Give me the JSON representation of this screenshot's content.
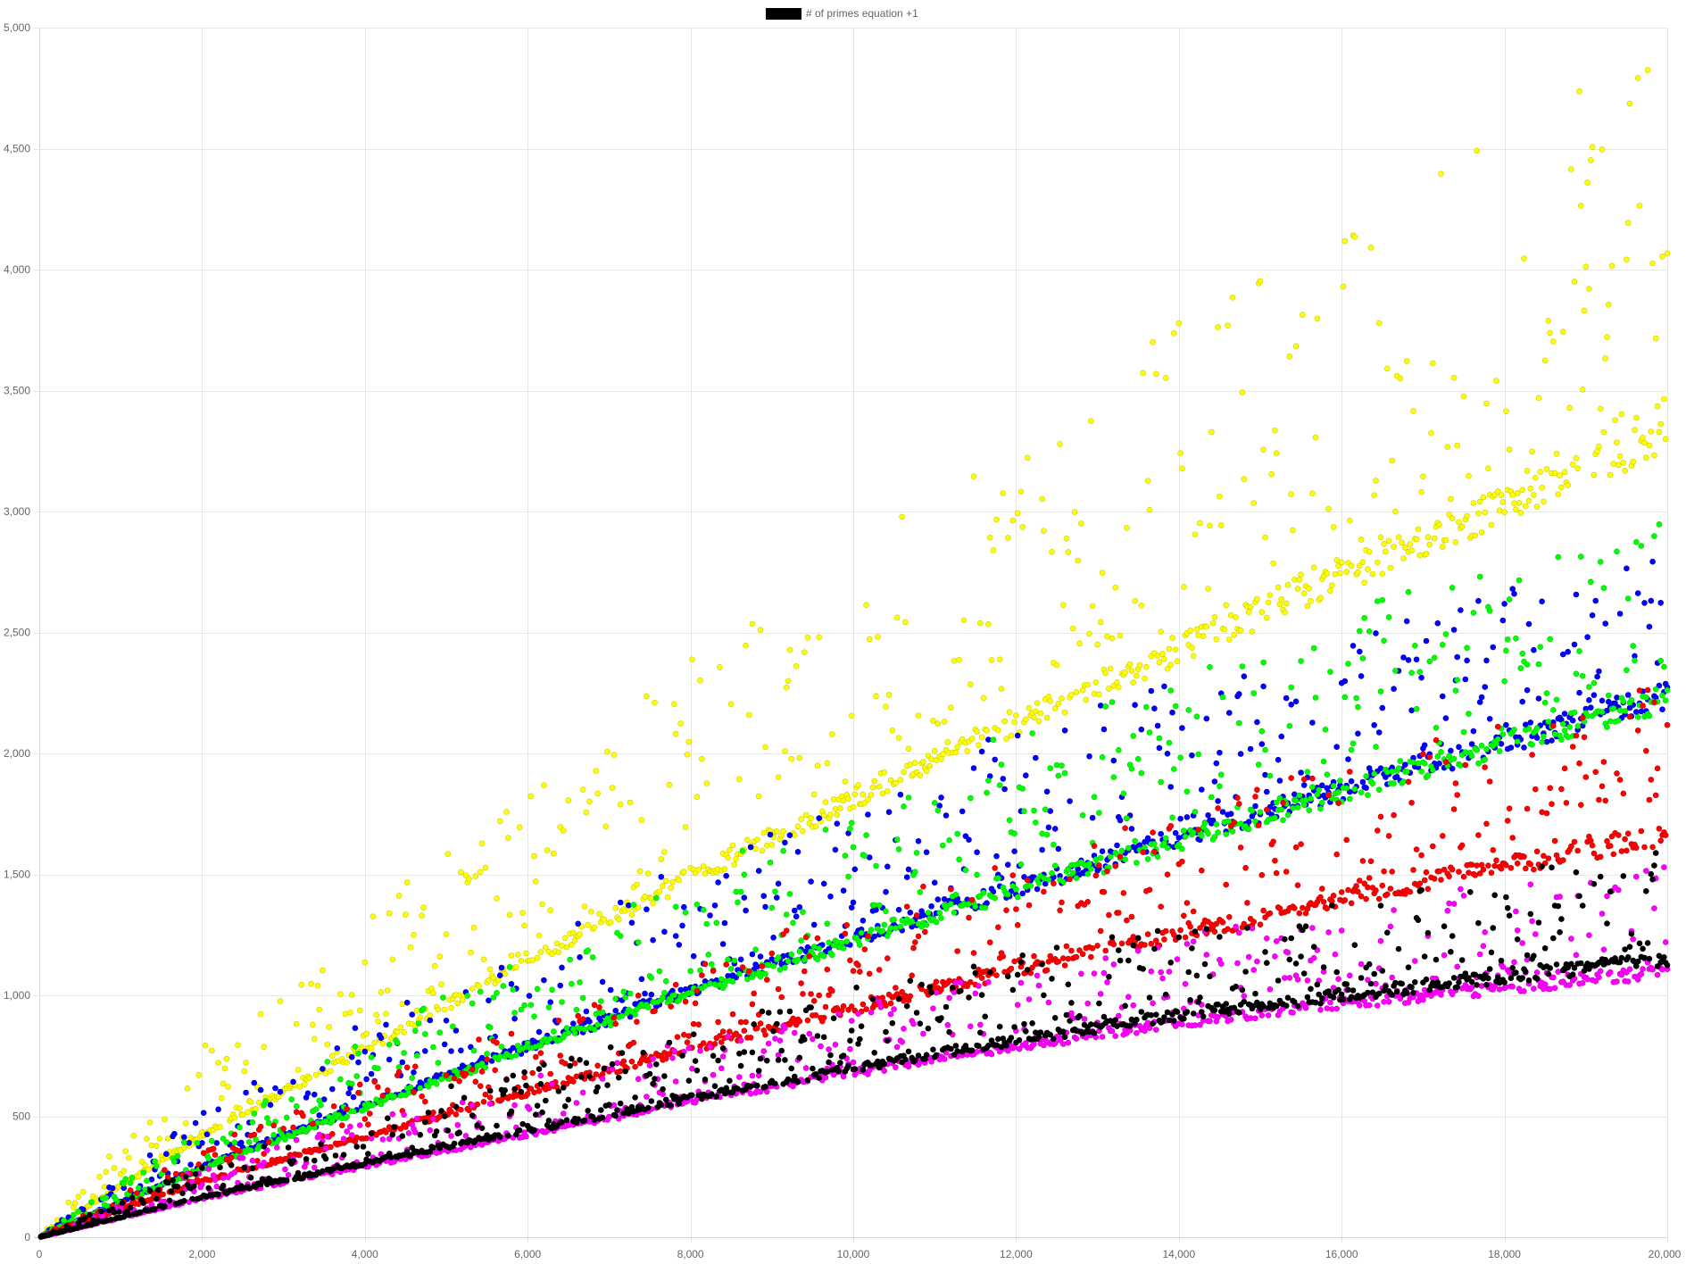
{
  "chart_data": {
    "type": "scatter",
    "title": "",
    "xlabel": "",
    "ylabel": "",
    "xlim": [
      0,
      20000
    ],
    "ylim": [
      0,
      5000
    ],
    "x_ticks": [
      0,
      2000,
      4000,
      6000,
      8000,
      10000,
      12000,
      14000,
      16000,
      18000,
      20000
    ],
    "x_tick_labels": [
      "0",
      "2,000",
      "4,000",
      "6,000",
      "8,000",
      "10,000",
      "12,000",
      "14,000",
      "16,000",
      "18,000",
      "20,000"
    ],
    "y_ticks": [
      0,
      500,
      1000,
      1500,
      2000,
      2500,
      3000,
      3500,
      4000,
      4500,
      5000
    ],
    "y_tick_labels": [
      "0",
      "500",
      "1,000",
      "1,500",
      "2,000",
      "2,500",
      "3,000",
      "3,500",
      "4,000",
      "4,500",
      "5,000"
    ],
    "grid": true,
    "legend": {
      "placement": "top-center",
      "entries": [
        {
          "label": "# of primes equation +1",
          "color": "#000000"
        }
      ]
    },
    "series": [
      {
        "color": "#ffff00",
        "stroke": "#cccc00",
        "trend": {
          "x": [
            0,
            2000,
            5000,
            8000,
            11000,
            14000,
            17000,
            20000
          ],
          "y": [
            0,
            420,
            960,
            1490,
            1980,
            2430,
            2880,
            3320
          ]
        },
        "upper": {
          "x": [
            0,
            2000,
            5000,
            8000,
            11000,
            14000,
            17000,
            20000
          ],
          "y": [
            0,
            820,
            1600,
            2400,
            3080,
            3780,
            4380,
            5000
          ]
        }
      },
      {
        "color": "#0000ff",
        "stroke": "#0000cc",
        "trend": {
          "x": [
            0,
            2000,
            5000,
            8000,
            11000,
            14000,
            17000,
            20000
          ],
          "y": [
            0,
            290,
            670,
            1020,
            1340,
            1650,
            1950,
            2240
          ]
        },
        "upper": {
          "x": [
            0,
            2000,
            5000,
            8000,
            11000,
            14000,
            17000,
            20000
          ],
          "y": [
            0,
            520,
            1080,
            1560,
            2020,
            2350,
            2600,
            2850
          ]
        }
      },
      {
        "color": "#00ff00",
        "stroke": "#00cc00",
        "trend": {
          "x": [
            0,
            2000,
            5000,
            8000,
            11000,
            14000,
            17000,
            20000
          ],
          "y": [
            0,
            285,
            660,
            1010,
            1330,
            1640,
            1940,
            2230
          ]
        },
        "upper": {
          "x": [
            0,
            2000,
            5000,
            8000,
            11000,
            14000,
            17000,
            20000
          ],
          "y": [
            0,
            460,
            1000,
            1500,
            1970,
            2350,
            2700,
            3100
          ]
        }
      },
      {
        "color": "#ff0000",
        "stroke": "#cc0000",
        "trend": {
          "x": [
            0,
            2000,
            5000,
            8000,
            11000,
            14000,
            17000,
            20000
          ],
          "y": [
            0,
            230,
            510,
            780,
            1030,
            1250,
            1470,
            1660
          ]
        },
        "upper": {
          "x": [
            0,
            2000,
            5000,
            8000,
            11000,
            14000,
            17000,
            20000
          ],
          "y": [
            0,
            370,
            780,
            1140,
            1470,
            1780,
            2050,
            2300
          ]
        }
      },
      {
        "color": "#ff00ff",
        "stroke": "#cc00cc",
        "trend": {
          "x": [
            0,
            2000,
            5000,
            8000,
            11000,
            14000,
            17000,
            20000
          ],
          "y": [
            0,
            160,
            360,
            560,
            740,
            890,
            1000,
            1100
          ]
        },
        "upper": {
          "x": [
            0,
            2000,
            5000,
            8000,
            11000,
            14000,
            17000,
            20000
          ],
          "y": [
            0,
            290,
            580,
            820,
            1040,
            1250,
            1420,
            1550
          ]
        }
      },
      {
        "color": "#000000",
        "stroke": "#000000",
        "trend": {
          "x": [
            0,
            2000,
            5000,
            8000,
            11000,
            14000,
            17000,
            20000
          ],
          "y": [
            0,
            165,
            375,
            575,
            760,
            920,
            1040,
            1150
          ]
        },
        "upper": {
          "x": [
            0,
            2000,
            5000,
            8000,
            11000,
            14000,
            17000,
            20000
          ],
          "y": [
            0,
            300,
            620,
            880,
            1110,
            1300,
            1480,
            1620
          ]
        }
      }
    ]
  }
}
